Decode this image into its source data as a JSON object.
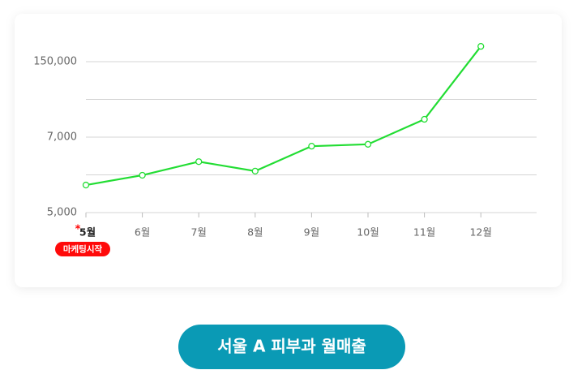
{
  "chart_data": {
    "type": "line",
    "categories": [
      "5월",
      "6월",
      "7월",
      "8월",
      "9월",
      "10월",
      "11월",
      "12월"
    ],
    "series": [
      {
        "color": "#22dd33",
        "values": [
          5730,
          5990,
          6350,
          6100,
          6760,
          6810,
          40800,
          179000
        ]
      }
    ],
    "ylim": [
      5000,
      150000
    ],
    "yticks": [
      {
        "value": 5000,
        "label": "5,000"
      },
      {
        "value": 7000,
        "label": "7,000"
      },
      {
        "value": 150000,
        "label": "150,000"
      }
    ],
    "y_scale": "piecewise",
    "grid": true,
    "minor_grid": true,
    "highlight_index": 0,
    "highlight_marker": "*",
    "annotation": "마케팅시작"
  },
  "button": "서울 A 피부과 월매출"
}
